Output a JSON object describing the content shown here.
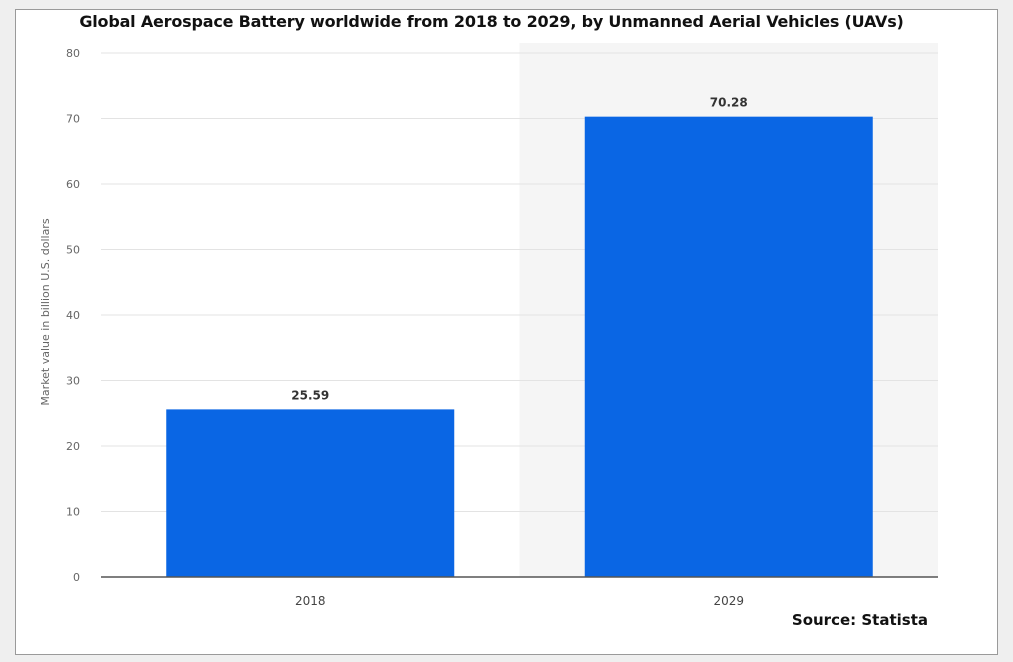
{
  "chart_data": {
    "type": "bar",
    "title": "Global Aerospace Battery worldwide from 2018 to 2029, by Unmanned Aerial Vehicles (UAVs)",
    "categories": [
      "2018",
      "2029"
    ],
    "values": [
      25.59,
      70.28
    ],
    "data_labels": [
      "25.59",
      "70.28"
    ],
    "xlabel": "",
    "ylabel": "Market value in billion U.S. dollars",
    "ylim": [
      0,
      80
    ],
    "yticks": [
      0,
      10,
      20,
      30,
      40,
      50,
      60,
      70,
      80
    ],
    "ytick_labels": [
      "0",
      "10",
      "20",
      "30",
      "40",
      "50",
      "60",
      "70",
      "80"
    ],
    "grid": true,
    "bar_color": "#0a66e4",
    "highlight_band_category": "2029",
    "highlight_band_color": "#f5f5f5"
  },
  "footer": {
    "source": "Source: Statista"
  }
}
